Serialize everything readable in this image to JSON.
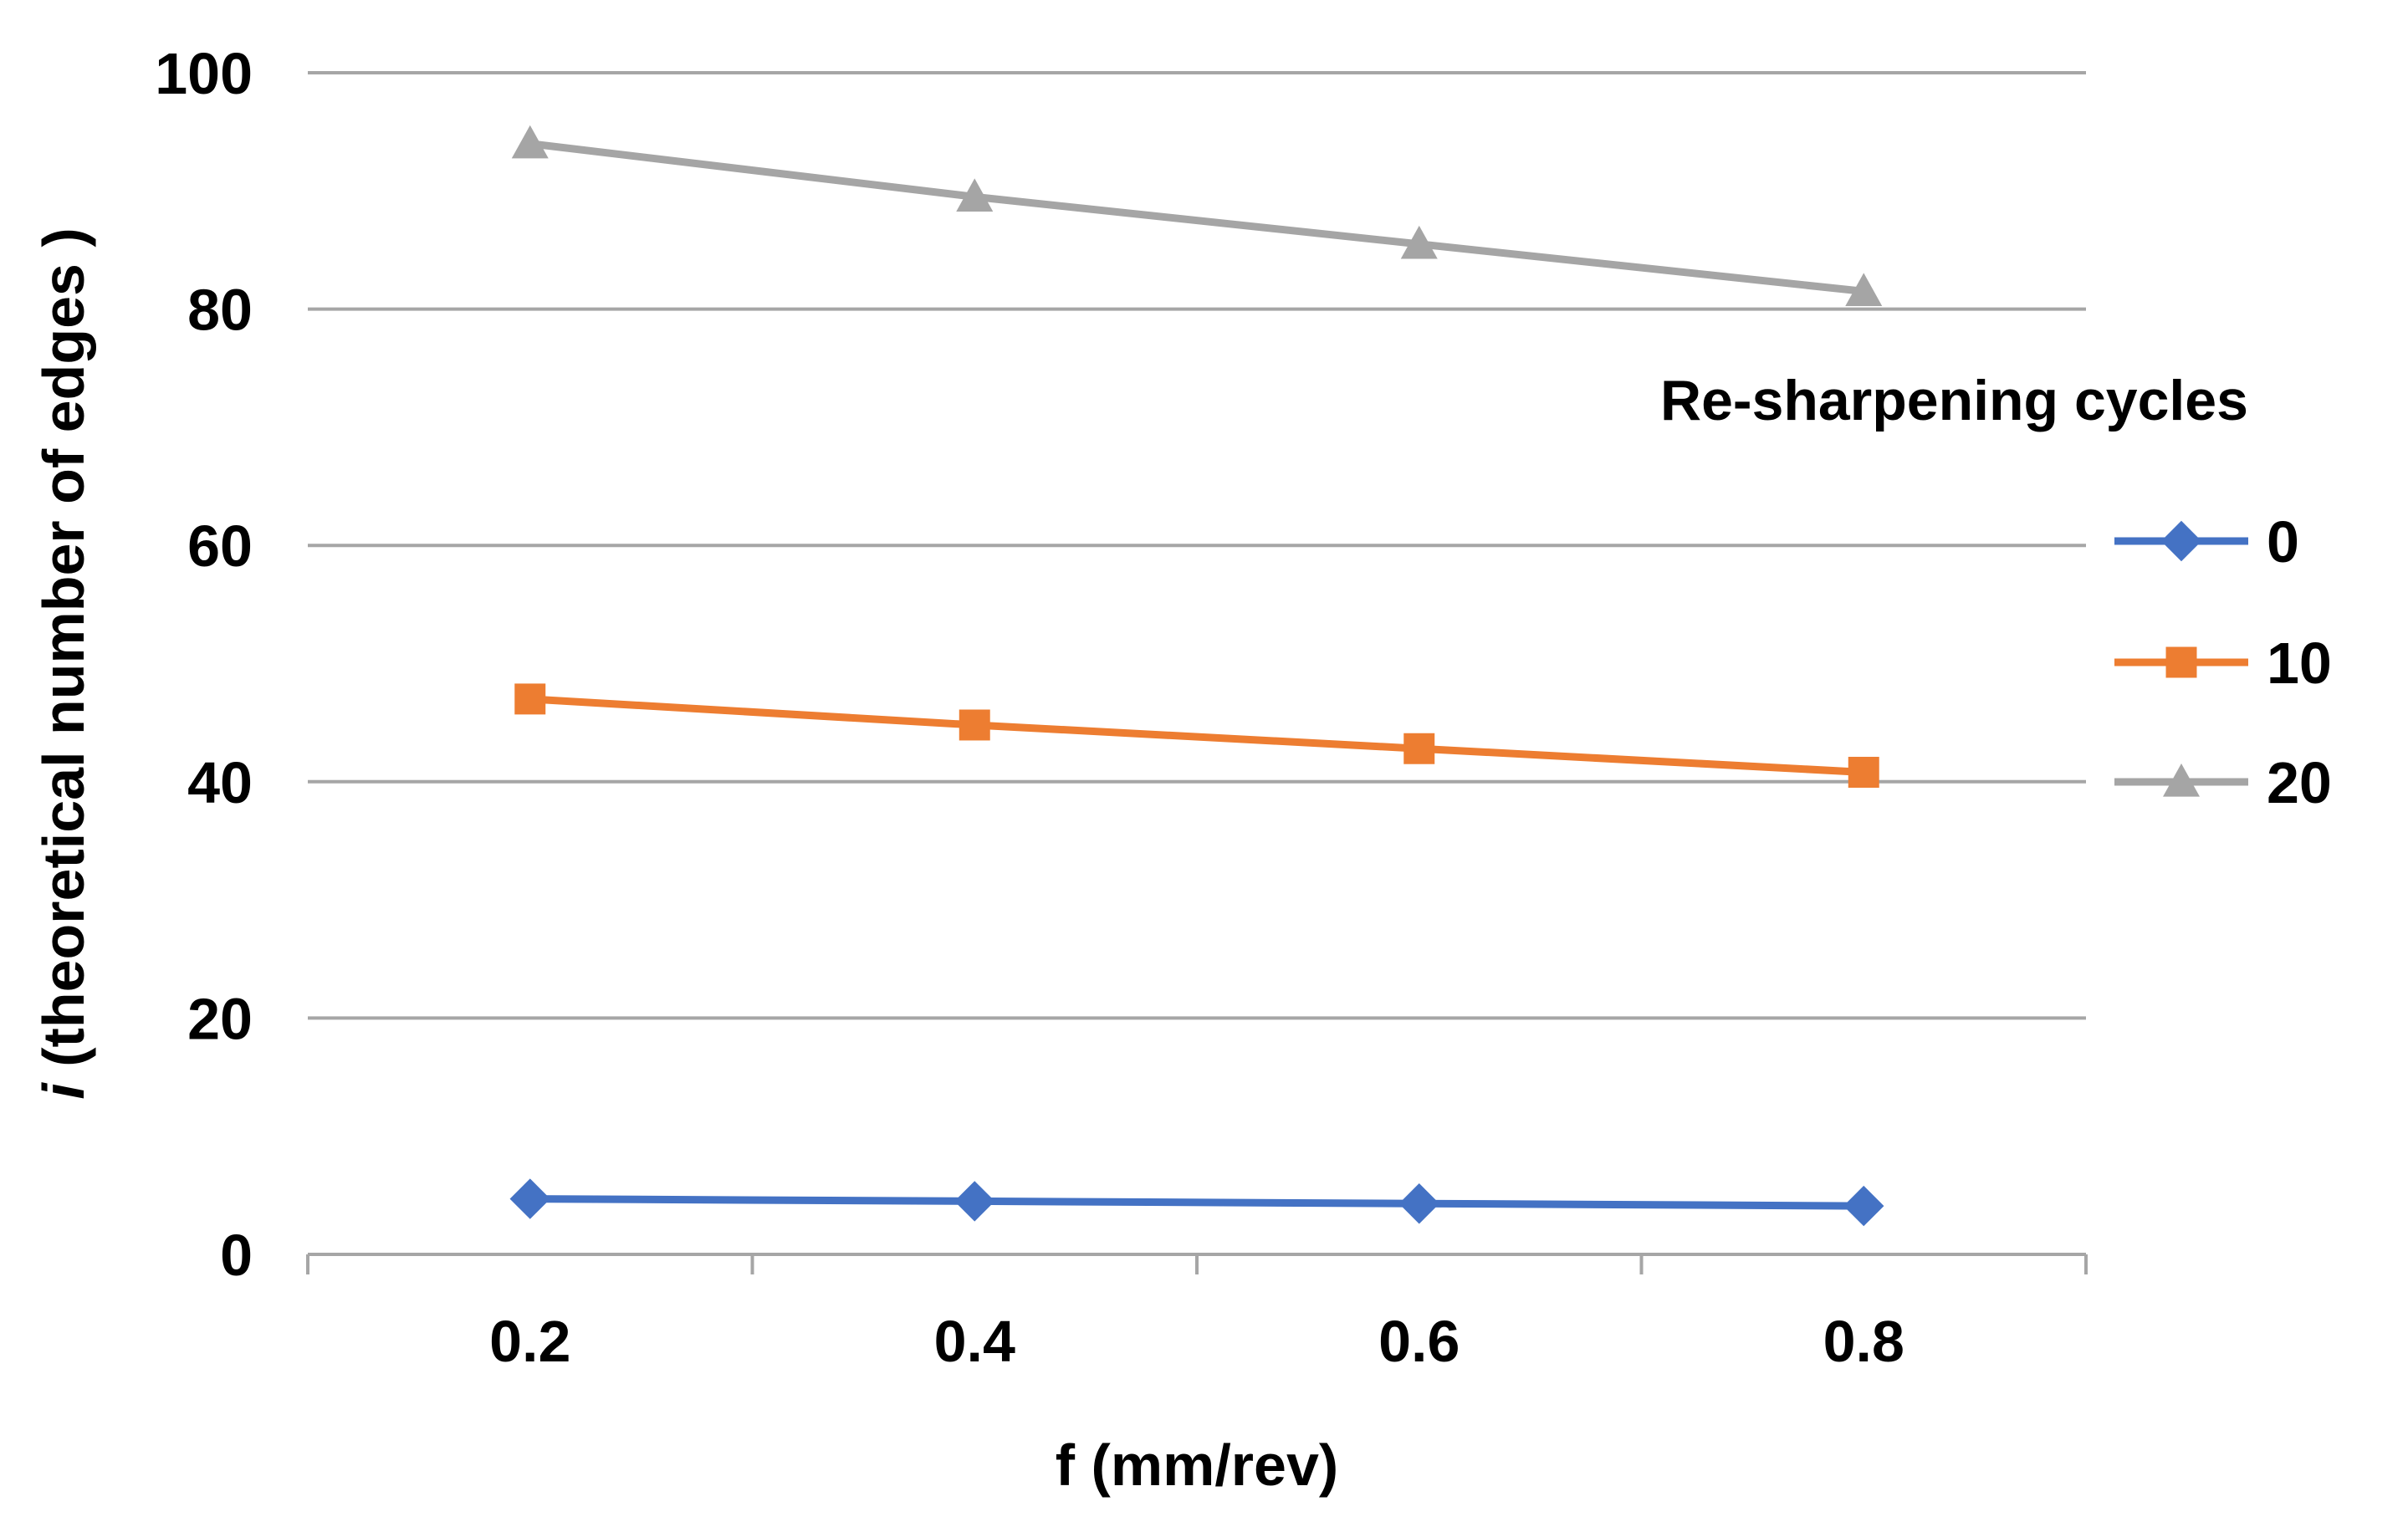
{
  "chart_data": {
    "type": "line",
    "title": "",
    "xlabel": "f (mm/rev)",
    "ylabel_italic_part": "i",
    "ylabel_rest": " (theoretical number of edges )",
    "ylabel": "i (theoretical number of edges )",
    "ylim": [
      0,
      100
    ],
    "yticks": [
      0,
      20,
      40,
      60,
      80,
      100
    ],
    "ytick_labels": [
      "0",
      "20",
      "40",
      "60",
      "80",
      "100"
    ],
    "x": [
      0.2,
      0.4,
      0.6,
      0.8
    ],
    "xtick_labels": [
      "0.2",
      "0.4",
      "0.6",
      "0.8"
    ],
    "xlim": [
      0.1,
      0.9
    ],
    "grid": true,
    "legend_title": "Re-sharpening cycles",
    "legend_position": "right",
    "series": [
      {
        "name": "0",
        "marker": "diamond",
        "color": "#4472C4",
        "values": [
          4.7,
          4.5,
          4.3,
          4.1
        ]
      },
      {
        "name": "10",
        "marker": "square",
        "color": "#ED7D31",
        "values": [
          47.0,
          44.8,
          42.8,
          40.8
        ]
      },
      {
        "name": "20",
        "marker": "triangle",
        "color": "#A5A5A5",
        "values": [
          94.0,
          89.5,
          85.5,
          81.5
        ]
      }
    ]
  }
}
